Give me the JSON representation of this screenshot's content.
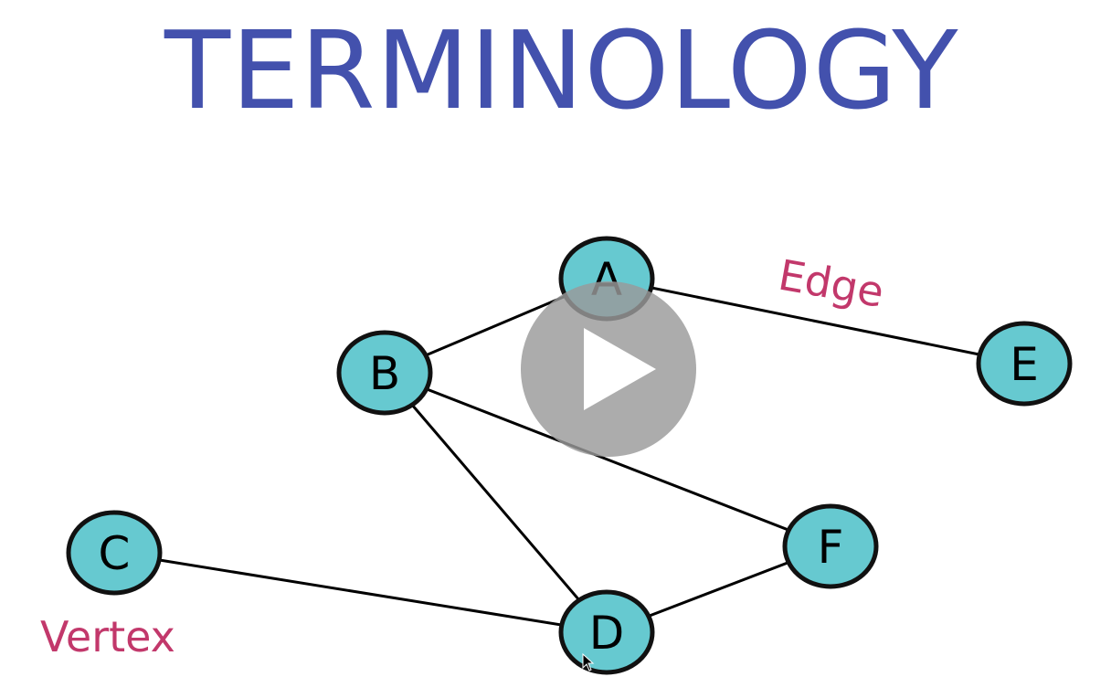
{
  "title": "TERMINOLOGY",
  "colors": {
    "title": "#4351ad",
    "node_fill": "#66c9d0",
    "node_stroke": "#111111",
    "edge": "#000000",
    "annotation": "#c2386b",
    "play_bg": "#9a9a9a",
    "play_icon": "#ffffff"
  },
  "graph": {
    "nodes": [
      {
        "id": "A",
        "label": "A"
      },
      {
        "id": "B",
        "label": "B"
      },
      {
        "id": "C",
        "label": "C"
      },
      {
        "id": "D",
        "label": "D"
      },
      {
        "id": "E",
        "label": "E"
      },
      {
        "id": "F",
        "label": "F"
      }
    ],
    "edges": [
      {
        "from": "A",
        "to": "B"
      },
      {
        "from": "A",
        "to": "E"
      },
      {
        "from": "B",
        "to": "D"
      },
      {
        "from": "B",
        "to": "F"
      },
      {
        "from": "C",
        "to": "D"
      },
      {
        "from": "D",
        "to": "F"
      }
    ]
  },
  "annotations": {
    "edge_label": "Edge",
    "vertex_label": "Vertex"
  },
  "player": {
    "play_icon": "play-icon"
  }
}
